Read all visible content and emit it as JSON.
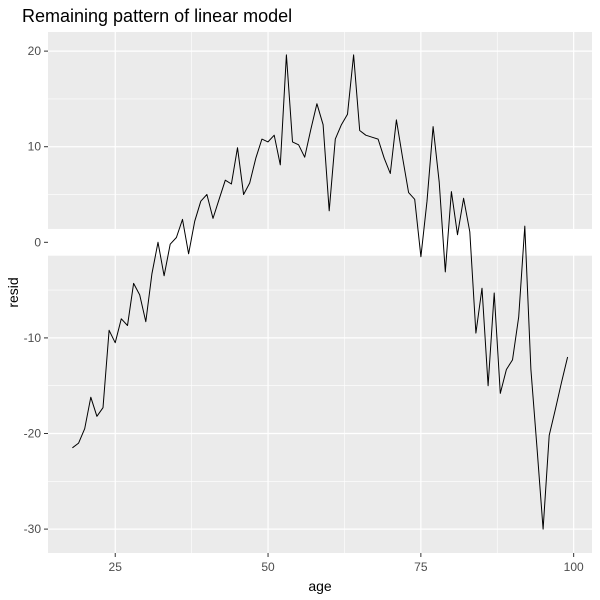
{
  "chart_data": {
    "type": "line",
    "title": "Remaining pattern of linear model",
    "xlabel": "age",
    "ylabel": "resid",
    "xlim": [
      14,
      103
    ],
    "ylim": [
      -32.5,
      22
    ],
    "grid": true,
    "x_ticks": [
      25,
      50,
      75,
      100
    ],
    "x_tick_labels": [
      "25",
      "50",
      "75",
      "100"
    ],
    "y_ticks": [
      -30,
      -20,
      -10,
      0,
      10,
      20
    ],
    "y_tick_labels": [
      "-30",
      "-20",
      "-10",
      "0",
      "10",
      "20"
    ],
    "highlight_band": [
      -1.4,
      1.4
    ],
    "colors": {
      "panel": "#ebebeb",
      "grid": "#ffffff",
      "line": "#000000",
      "band": "#ffffff"
    },
    "series": [
      {
        "x": [
          18,
          19,
          20,
          21,
          22,
          23,
          24,
          25,
          26,
          27,
          28,
          29,
          30,
          31,
          32,
          33,
          34,
          35,
          36,
          37,
          38,
          39,
          40,
          41,
          42,
          43,
          44,
          45,
          46,
          47,
          48,
          49,
          50,
          51,
          52,
          53,
          54,
          55,
          56,
          57,
          58,
          59,
          60,
          61,
          62,
          63,
          64,
          65,
          66,
          67,
          68,
          69,
          70,
          71,
          72,
          73,
          74,
          75,
          76,
          77,
          78,
          79,
          80,
          81,
          82,
          83,
          84,
          85,
          86,
          87,
          88,
          89,
          90,
          91,
          92,
          93,
          94,
          95,
          96,
          97,
          98,
          99
        ],
        "values": [
          -21.5,
          -21,
          -19.5,
          -16.2,
          -18.2,
          -17.3,
          -9.2,
          -10.5,
          -8,
          -8.7,
          -4.3,
          -5.5,
          -8.3,
          -3.3,
          0,
          -3.5,
          -0.2,
          0.5,
          2.4,
          -1.2,
          2.2,
          4.3,
          5,
          2.5,
          4.5,
          6.5,
          6.1,
          9.9,
          5,
          6.2,
          8.8,
          10.8,
          10.5,
          11.2,
          8.1,
          19.6,
          10.5,
          10.2,
          8.9,
          11.8,
          14.5,
          12.3,
          3.3,
          10.8,
          12.3,
          13.4,
          19.6,
          11.7,
          11.2,
          11,
          10.8,
          8.8,
          7.2,
          12.8,
          8.9,
          5.2,
          4.5,
          -1.5,
          4.3,
          12.1,
          6.3,
          -3.1,
          5.3,
          0.8,
          4.6,
          1.1,
          -9.5,
          -4.8,
          -15,
          -5.3,
          -15.8,
          -13.3,
          -12.3,
          -7.8,
          1.7,
          -13.3,
          -21.5,
          -30,
          -20.2,
          -17.5,
          -14.7,
          -12
        ]
      }
    ]
  }
}
